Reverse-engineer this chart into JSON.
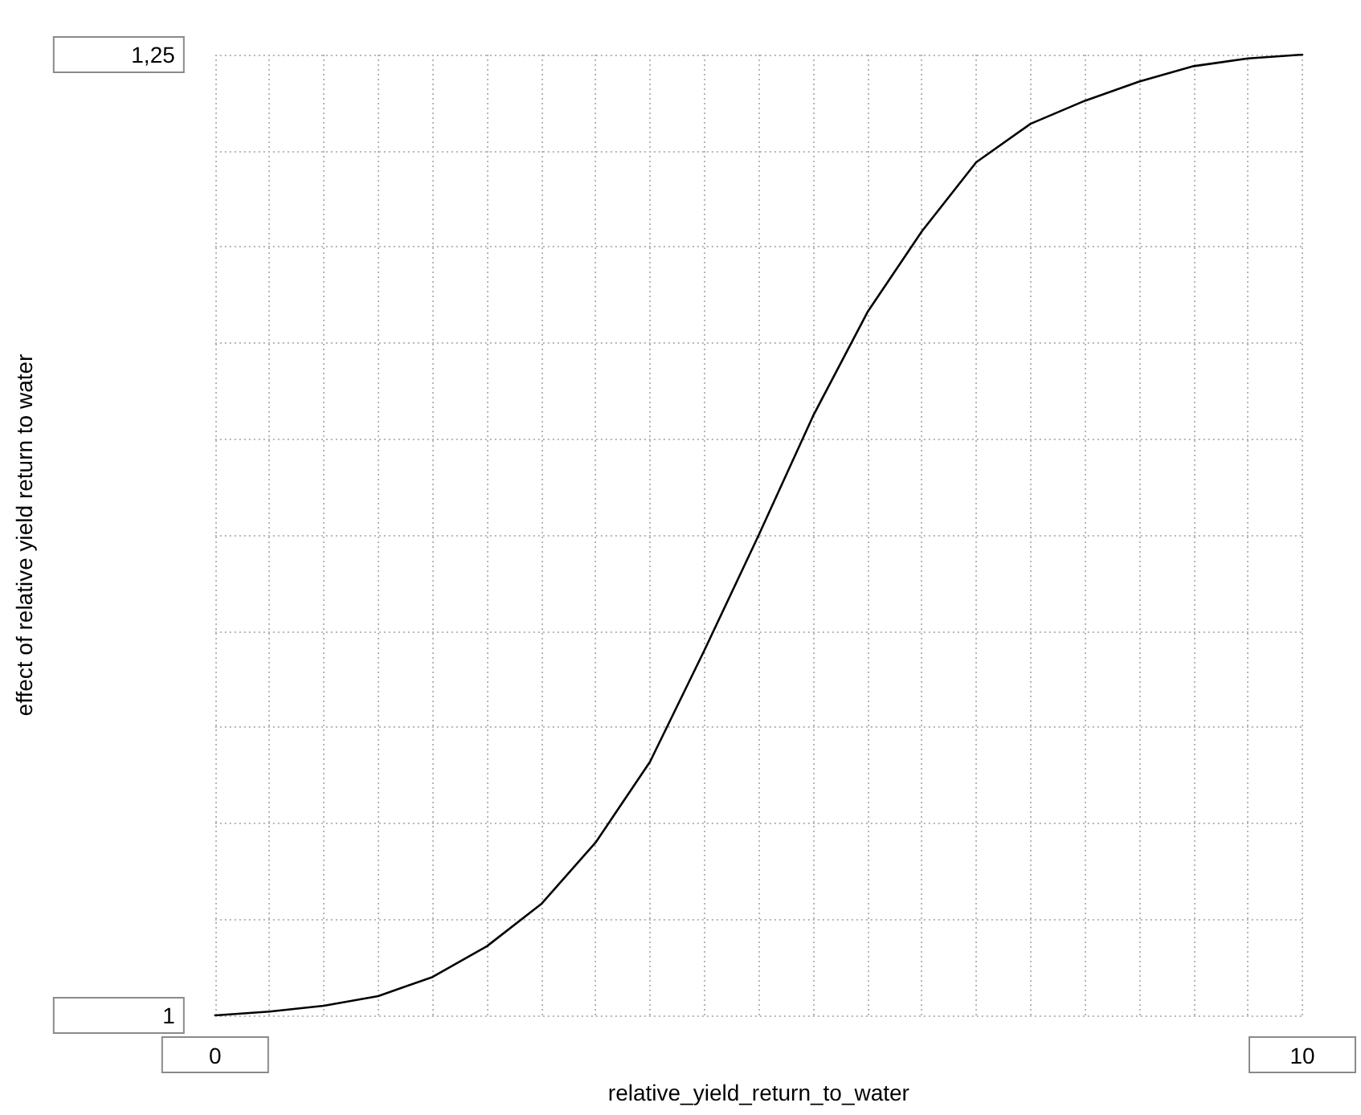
{
  "chart_data": {
    "type": "line",
    "xlabel": "relative_yield_return_to_water",
    "ylabel": "effect of relative yield return to water",
    "x": [
      0,
      0.5,
      1,
      1.5,
      2,
      2.5,
      3,
      3.5,
      4,
      4.5,
      5,
      5.5,
      6,
      6.5,
      7,
      7.5,
      8,
      8.5,
      9,
      9.5,
      10
    ],
    "series": [
      {
        "color": "#000000",
        "values": [
          1.0,
          1.001,
          1.0025,
          1.005,
          1.01,
          1.018,
          1.029,
          1.045,
          1.066,
          1.095,
          1.125,
          1.156,
          1.183,
          1.204,
          1.222,
          1.232,
          1.238,
          1.243,
          1.247,
          1.249,
          1.25
        ]
      }
    ],
    "xlim": [
      0,
      10
    ],
    "ylim": [
      1,
      1.25
    ],
    "xticks": [
      0,
      {
        "value": 0.5,
        "label": null
      },
      {
        "value": 1,
        "label": null
      },
      {
        "value": 1.5,
        "label": null
      },
      {
        "value": 2,
        "label": null
      },
      {
        "value": 2.5,
        "label": null
      },
      {
        "value": 3,
        "label": null
      },
      {
        "value": 3.5,
        "label": null
      },
      {
        "value": 4,
        "label": null
      },
      {
        "value": 4.5,
        "label": null
      },
      {
        "value": 5,
        "label": null
      },
      {
        "value": 5.5,
        "label": null
      },
      {
        "value": 6,
        "label": null
      },
      {
        "value": 6.5,
        "label": null
      },
      {
        "value": 7,
        "label": null
      },
      {
        "value": 7.5,
        "label": null
      },
      {
        "value": 8,
        "label": null
      },
      {
        "value": 8.5,
        "label": null
      },
      {
        "value": 9,
        "label": null
      },
      {
        "value": 9.5,
        "label": null
      },
      10
    ],
    "yticks": [
      1,
      {
        "value": 1.025,
        "label": null
      },
      {
        "value": 1.05,
        "label": null
      },
      {
        "value": 1.075,
        "label": null
      },
      {
        "value": 1.1,
        "label": null
      },
      {
        "value": 1.125,
        "label": null
      },
      {
        "value": 1.15,
        "label": null
      },
      {
        "value": 1.175,
        "label": null
      },
      {
        "value": 1.2,
        "label": null
      },
      {
        "value": 1.225,
        "label": null
      },
      {
        "value": 1.25,
        "label": "1,25"
      }
    ],
    "grid": true,
    "marker": "none",
    "line_style": "solid"
  }
}
